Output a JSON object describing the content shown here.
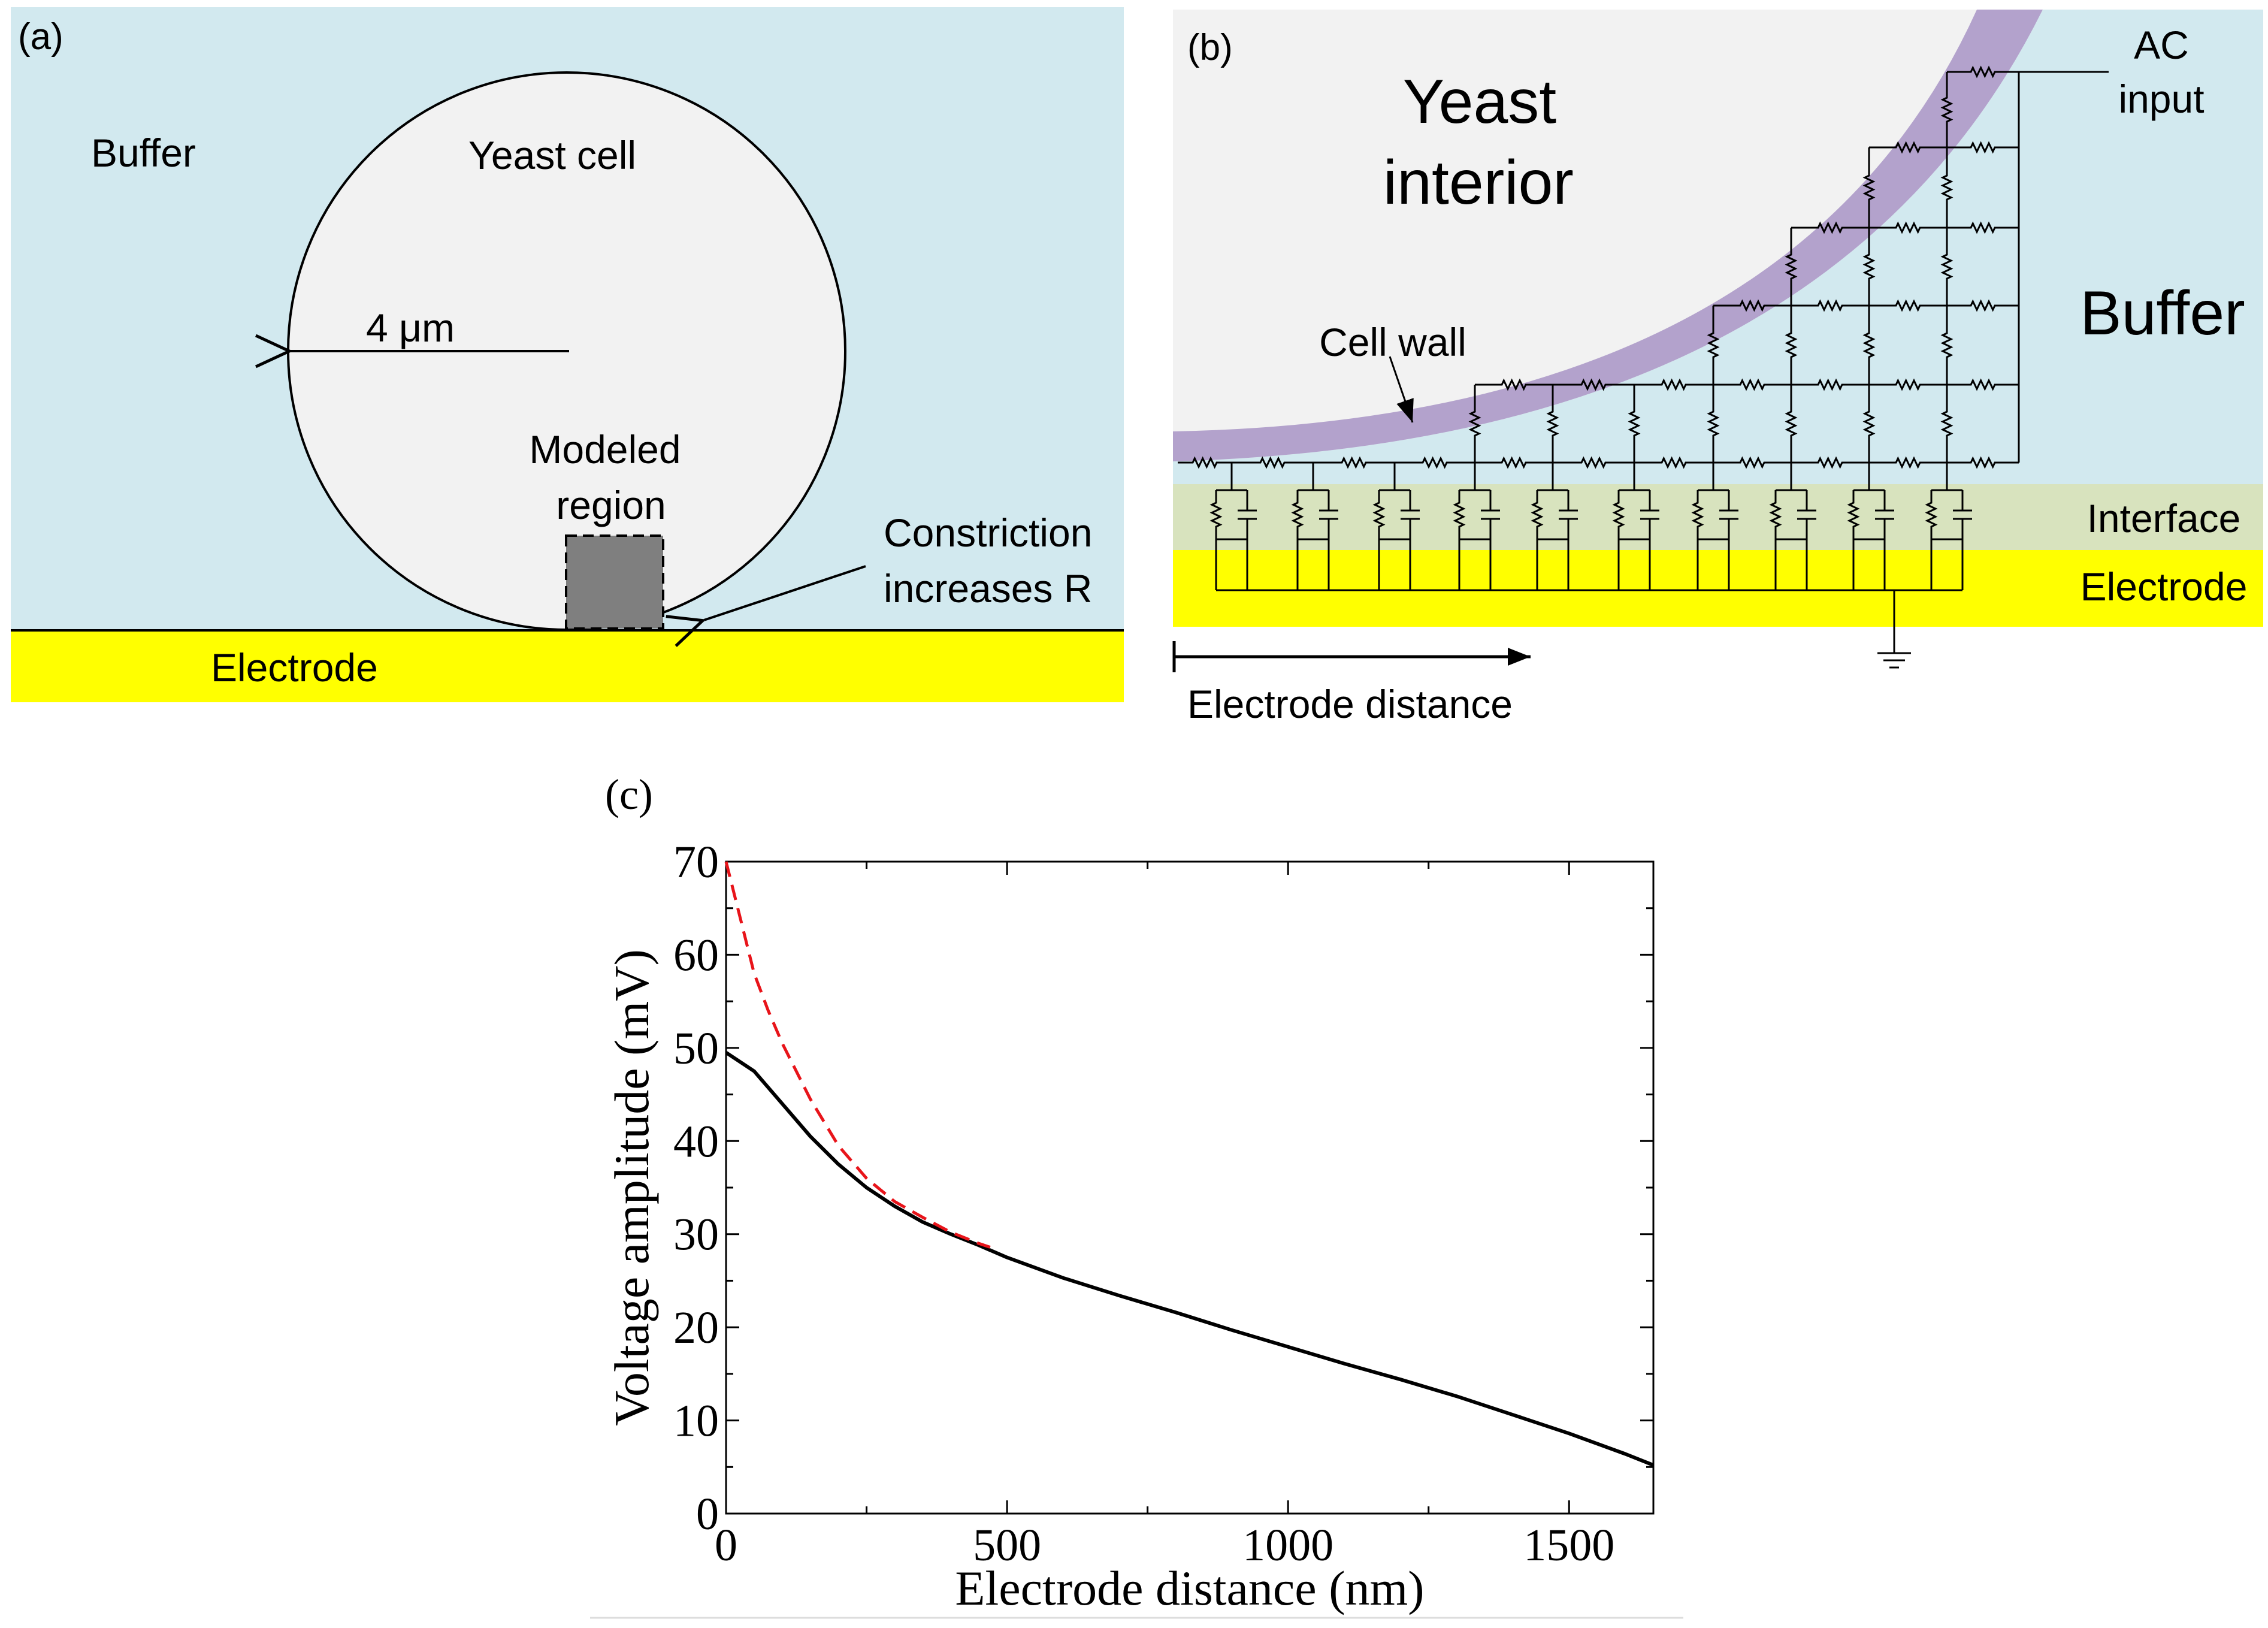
{
  "panel_a": {
    "label": "(a)",
    "buffer": "Buffer",
    "cell": "Yeast cell",
    "radius": "4 μm",
    "modeled_line1": "Modeled",
    "modeled_line2": "region",
    "constriction_line1": "Constriction",
    "constriction_line2": "increases R",
    "electrode": "Electrode",
    "colors": {
      "buffer": "#d2e9ef",
      "cell": "#f2f2f2",
      "electrode": "#ffff00",
      "region": "#7f7f7f"
    }
  },
  "panel_b": {
    "label": "(b)",
    "interior_line1": "Yeast",
    "interior_line2": "interior",
    "ac_line1": "AC",
    "ac_line2": "input",
    "buffer": "Buffer",
    "cell_wall": "Cell wall",
    "interface": "Interface",
    "electrode": "Electrode",
    "distance": "Electrode distance",
    "colors": {
      "wall": "#b3a2cc",
      "interface": "#d8e3be",
      "electrode": "#ffff00",
      "buffer": "#d2e9ef",
      "interior": "#f2f2f2"
    }
  },
  "panel_c": {
    "label": "(c)",
    "chart_data": {
      "type": "line",
      "title": "",
      "xlabel": "Electrode distance (nm)",
      "ylabel": "Voltage amplitude (mV)",
      "xlim": [
        0,
        1650
      ],
      "ylim": [
        0,
        70
      ],
      "xticks": [
        0,
        500,
        1000,
        1500
      ],
      "yticks": [
        0,
        10,
        20,
        30,
        40,
        50,
        60,
        70
      ],
      "series": [
        {
          "style": "solid",
          "color": "#000000",
          "x": [
            0,
            50,
            100,
            150,
            200,
            250,
            300,
            350,
            400,
            450,
            500,
            600,
            700,
            800,
            900,
            1000,
            1100,
            1200,
            1300,
            1400,
            1500,
            1600,
            1650
          ],
          "y": [
            49.5,
            47.5,
            44,
            40.5,
            37.5,
            35,
            33,
            31.3,
            30,
            28.8,
            27.5,
            25.3,
            23.4,
            21.6,
            19.7,
            17.9,
            16.1,
            14.4,
            12.6,
            10.6,
            8.6,
            6.4,
            5.2
          ]
        },
        {
          "style": "dashed",
          "color": "#e8141a",
          "x": [
            0,
            25,
            50,
            75,
            100,
            150,
            200,
            250,
            300,
            350,
            400,
            450,
            470
          ],
          "y": [
            70,
            64,
            58,
            54,
            50.5,
            44.5,
            39.5,
            36,
            33.5,
            31.8,
            30.2,
            29,
            28.6
          ]
        }
      ]
    }
  }
}
